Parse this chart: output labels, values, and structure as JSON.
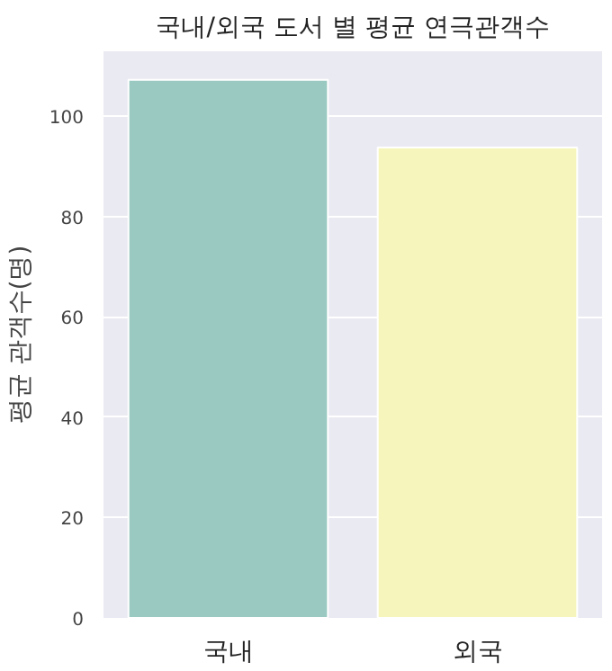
{
  "chart_data": {
    "type": "bar",
    "title": "국내/외국 도서 별 평균 연극관객수",
    "ylabel": "평균 관객수(명)",
    "categories": [
      "국내",
      "외국"
    ],
    "values": [
      107.3,
      93.8
    ],
    "colors": [
      "#99c9c0",
      "#f6f6bc"
    ],
    "ylim": [
      0,
      113
    ],
    "yticks": [
      0,
      20,
      40,
      60,
      80,
      100
    ],
    "grid": "y"
  }
}
